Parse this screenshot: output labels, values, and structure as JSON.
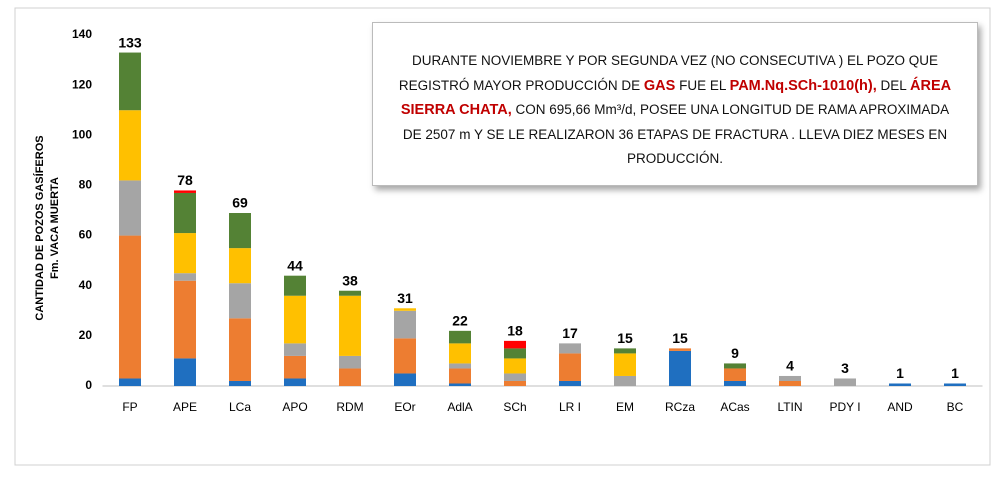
{
  "chart_data": {
    "type": "stacked_bar",
    "ylabel": [
      "CANTIDAD DE POZOS GASÍFEROS",
      "Fm. VACA MUERTA"
    ],
    "categories": [
      "FP",
      "APE",
      "LCa",
      "APO",
      "RDM",
      "EOr",
      "AdlA",
      "SCh",
      "LR I",
      "EM",
      "RCza",
      "ACas",
      "LTIN",
      "PDY I",
      "AND",
      "BC"
    ],
    "series": [
      {
        "color": "#1f6fc0",
        "values": [
          3,
          11,
          2,
          3,
          0,
          5,
          1,
          0,
          2,
          0,
          14,
          2,
          0,
          0,
          1,
          1
        ]
      },
      {
        "color": "#ed7d31",
        "values": [
          57,
          31,
          25,
          9,
          7,
          14,
          6,
          2,
          11,
          0,
          1,
          5,
          2,
          0,
          0,
          0
        ]
      },
      {
        "color": "#a5a5a5",
        "values": [
          22,
          3,
          14,
          5,
          5,
          11,
          2,
          3,
          4,
          4,
          0,
          0,
          2,
          3,
          0,
          0
        ]
      },
      {
        "color": "#ffc000",
        "values": [
          28,
          16,
          14,
          19,
          24,
          1,
          8,
          6,
          0,
          9,
          0,
          0,
          0,
          0,
          0,
          0
        ]
      },
      {
        "color": "#548235",
        "values": [
          23,
          16,
          14,
          8,
          2,
          0,
          5,
          4,
          0,
          2,
          0,
          2,
          0,
          0,
          0,
          0
        ]
      },
      {
        "color": "#ff0000",
        "values": [
          0,
          1,
          0,
          0,
          0,
          0,
          0,
          3,
          0,
          0,
          0,
          0,
          0,
          0,
          0,
          0
        ]
      }
    ],
    "totals": [
      133,
      78,
      69,
      44,
      38,
      31,
      22,
      18,
      17,
      15,
      15,
      9,
      4,
      3,
      1,
      1
    ],
    "ylim": [
      0,
      140
    ],
    "yticks": [
      0,
      20,
      40,
      60,
      80,
      100,
      120,
      140
    ],
    "grid": false,
    "annotation": [
      {
        "text": "DURANTE NOVIEMBRE Y POR SEGUNDA VEZ (NO CONSECUTIVA ) EL POZO QUE REGISTRÓ MAYOR PRODUCCIÓN DE "
      },
      {
        "text": "GAS",
        "color": "#c00000"
      },
      {
        "text": " FUE EL "
      },
      {
        "text": "PAM.Nq.SCh-1010(h),",
        "color": "#c00000"
      },
      {
        "text": " DEL "
      },
      {
        "text": "ÁREA SIERRA CHATA,",
        "color": "#c00000"
      },
      {
        "text": " CON 695,66 Mm³/d, POSEE UNA LONGITUD DE RAMA APROXIMADA DE 2507 m Y SE LE REALIZARON 36 ETAPAS DE FRACTURA . LLEVA DIEZ MESES EN PRODUCCIÓN."
      }
    ]
  }
}
